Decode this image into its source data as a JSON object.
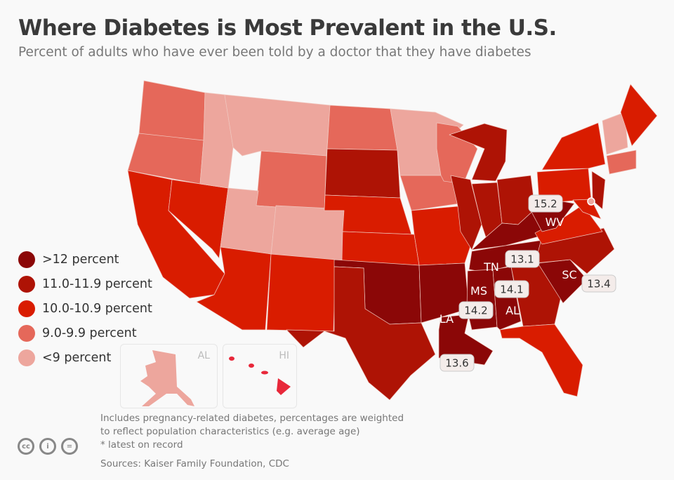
{
  "title": "Where Diabetes is Most Prevalent in the U.S.",
  "subtitle": "Percent of adults who have ever been told by a doctor that they have diabetes",
  "legend": [
    {
      "label": ">12 percent",
      "color": "#8b0707",
      "key": "c5"
    },
    {
      "label": "11.0-11.9 percent",
      "color": "#ae1305",
      "key": "c4"
    },
    {
      "label": "10.0-10.9 percent",
      "color": "#d91c00",
      "key": "c3"
    },
    {
      "label": "9.0-9.9 percent",
      "color": "#e5685a",
      "key": "c2"
    },
    {
      "label": "<9 percent",
      "color": "#eda69d",
      "key": "c1"
    }
  ],
  "states": {
    "WA": "c2",
    "OR": "c2",
    "CA": "c3",
    "NV": "c3",
    "ID": "c1",
    "MT": "c1",
    "WY": "c2",
    "UT": "c1",
    "CO": "c1",
    "AZ": "c3",
    "NM": "c3",
    "ND": "c2",
    "SD": "c4",
    "NE": "c3",
    "KS": "c3",
    "OK": "c5",
    "TX": "c4",
    "MN": "c1",
    "IA": "c2",
    "MO": "c3",
    "AR": "c5",
    "LA": "c5",
    "WI": "c2",
    "IL": "c4",
    "MI": "c4",
    "IN": "c4",
    "OH": "c4",
    "KY": "c5",
    "TN": "c5",
    "MS": "c5",
    "AL": "c5",
    "GA": "c4",
    "FL": "c3",
    "SC": "c5",
    "NC": "c4",
    "VA": "c3",
    "WV": "c5",
    "PA": "c3",
    "NY": "c3",
    "MD": "c3",
    "NJ": "c4",
    "NE_CT": "c2",
    "VTNH": "c1",
    "ME": "c3",
    "AK": "c1",
    "HI": "c3"
  },
  "callouts": [
    {
      "state": "WV",
      "value": "15.2"
    },
    {
      "state": "TN",
      "value": "13.1"
    },
    {
      "state": "SC",
      "value": "13.4"
    },
    {
      "state": "MS",
      "value": "14.1"
    },
    {
      "state": "AL",
      "value": "14.2"
    },
    {
      "state": "LA",
      "value": "13.6"
    }
  ],
  "insets": {
    "alaska": "AL",
    "hawaii": "HI"
  },
  "notes": [
    "Includes pregnancy-related diabetes, percentages are weighted",
    "to reflect population characteristics (e.g. average age)",
    "* latest on record"
  ],
  "sources": "Sources: Kaiser Family Foundation, CDC",
  "license": [
    "cc",
    "by",
    "nd"
  ]
}
